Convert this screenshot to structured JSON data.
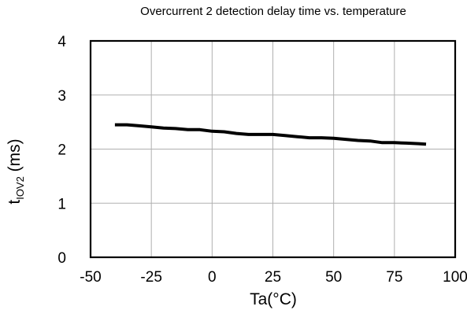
{
  "chart_data": {
    "type": "line",
    "title": "Overcurrent 2 detection delay time vs. temperature",
    "xlabel": "Ta(°C)",
    "ylabel": {
      "main": "t",
      "subscript": "IOV2",
      "unit": " (ms)"
    },
    "xlim": [
      -50,
      100
    ],
    "ylim": [
      0,
      4
    ],
    "xticks": [
      -50,
      -25,
      0,
      25,
      50,
      75,
      100
    ],
    "yticks": [
      0,
      1,
      2,
      3,
      4
    ],
    "xtick_labels": [
      "-50",
      "-25",
      "0",
      "25",
      "50",
      "75",
      "100"
    ],
    "ytick_labels": [
      "0",
      "1",
      "2",
      "3",
      "4"
    ],
    "grid": true,
    "legend": "none",
    "line_color": "#000000",
    "grid_color": "#b0b0b0",
    "series": [
      {
        "x": [
          -40,
          -35,
          -30,
          -25,
          -20,
          -15,
          -10,
          -5,
          0,
          5,
          10,
          15,
          20,
          25,
          30,
          35,
          40,
          45,
          50,
          55,
          60,
          65,
          70,
          75,
          80,
          85,
          88
        ],
        "values": [
          2.45,
          2.45,
          2.43,
          2.41,
          2.39,
          2.38,
          2.36,
          2.36,
          2.33,
          2.32,
          2.29,
          2.27,
          2.27,
          2.27,
          2.25,
          2.23,
          2.21,
          2.21,
          2.2,
          2.18,
          2.16,
          2.15,
          2.12,
          2.12,
          2.11,
          2.1,
          2.09
        ]
      }
    ]
  }
}
